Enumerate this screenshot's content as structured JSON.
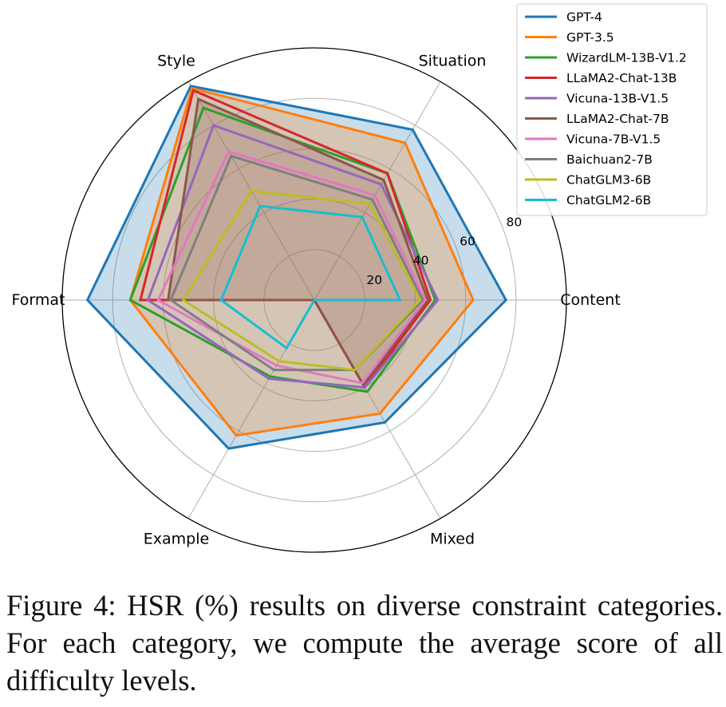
{
  "chart_data": {
    "type": "radar",
    "categories": [
      "Content",
      "Situation",
      "Style",
      "Format",
      "Example",
      "Mixed"
    ],
    "rlim": [
      0,
      100
    ],
    "rticks": [
      20,
      40,
      60,
      80
    ],
    "grid": true,
    "legend_position": "top-right",
    "series": [
      {
        "name": "GPT-4",
        "color": "#1f77b4",
        "values": [
          76,
          78,
          98,
          90,
          68,
          56
        ],
        "filled": true
      },
      {
        "name": "GPT-3.5",
        "color": "#ff7f0e",
        "values": [
          63,
          72,
          97,
          73,
          62,
          52
        ],
        "filled": true
      },
      {
        "name": "WizardLM-13B-V1.2",
        "color": "#2ca02c",
        "values": [
          48,
          58,
          88,
          73,
          35,
          42
        ],
        "filled": false
      },
      {
        "name": "LLaMA2-Chat-13B",
        "color": "#d62728",
        "values": [
          46,
          58,
          96,
          69,
          0,
          40
        ],
        "filled": false
      },
      {
        "name": "Vicuna-13B-V1.5",
        "color": "#9467bd",
        "values": [
          49,
          53,
          80,
          66,
          36,
          40
        ],
        "filled": false
      },
      {
        "name": "LLaMA2-Chat-7B",
        "color": "#8c564b",
        "values": [
          45,
          55,
          92,
          58,
          0,
          39
        ],
        "filled": true
      },
      {
        "name": "Vicuna-7B-V1.5",
        "color": "#e377c2",
        "values": [
          44,
          48,
          68,
          62,
          30,
          38
        ],
        "filled": false
      },
      {
        "name": "Baichuan2-7B",
        "color": "#7f7f7f",
        "values": [
          43,
          46,
          66,
          57,
          32,
          32
        ],
        "filled": false
      },
      {
        "name": "ChatGLM3-6B",
        "color": "#bcbd22",
        "values": [
          42,
          44,
          50,
          52,
          28,
          32
        ],
        "filled": false
      },
      {
        "name": "ChatGLM2-6B",
        "color": "#17becf",
        "values": [
          34,
          38,
          43,
          37,
          22,
          0
        ],
        "filled": false
      }
    ]
  },
  "caption": "Figure 4: HSR (%) results on diverse constraint categories. For each category, we compute the average score of all difficulty levels."
}
